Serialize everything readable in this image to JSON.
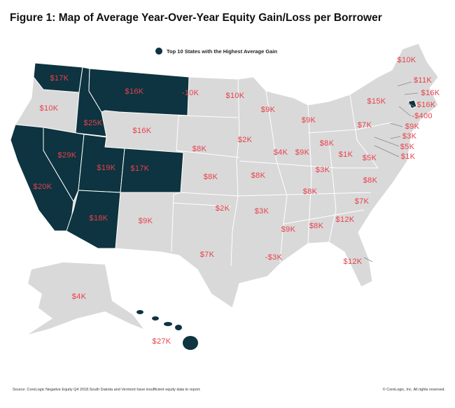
{
  "title": "Figure 1: Map of Average Year-Over-Year Equity Gain/Loss per Borrower",
  "legend": "Top 10 States with the Highest Average Gain",
  "colors": {
    "highlight": "#0d3440",
    "base": "#d9d9d9",
    "label": "#e8404a"
  },
  "states": {
    "WA": "$17K",
    "OR": "$10K",
    "ID": "$25K",
    "MT": "$16K",
    "ND": "-10K",
    "MN": "$10K",
    "WI": "$9K",
    "MI": "$9K",
    "NY": "$15K",
    "ME": "$10K",
    "NH": "$11K",
    "MA": "$16K",
    "RI": "$16K",
    "CT": "-$400",
    "NJ": "$9K",
    "DE": "$3K",
    "MD": "$5K",
    "DC": "$1K",
    "PA": "$7K",
    "OH": "$8K",
    "IN": "$9K",
    "IL": "$4K",
    "WV": "$1K",
    "VA": "$5K",
    "KY": "$3K",
    "WY": "$16K",
    "NV": "$29K",
    "CA": "$20K",
    "UT": "$19K",
    "CO": "$17K",
    "NE": "$8K",
    "IA": "$2K",
    "KS": "$8K",
    "MO": "$8K",
    "AZ": "$18K",
    "NM": "$9K",
    "OK": "$2K",
    "AR": "$3K",
    "TN": "$8K",
    "NC": "$8K",
    "SC": "$7K",
    "MS": "$9K",
    "AL": "$8K",
    "GA": "$12K",
    "TX": "$7K",
    "LA": "-$3K",
    "FL": "$12K",
    "AK": "$4K",
    "HI": "$27K"
  },
  "footer": {
    "source": "Source: CoreLogic Negative Equity Q4 2018.South Dakota and Vermont have insufficient equity data to report.",
    "copyright": "© CoreLogic, Inc. All rights reserved."
  }
}
